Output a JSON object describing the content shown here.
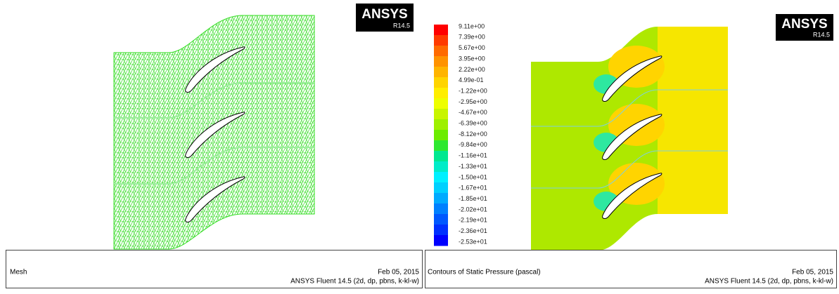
{
  "panels": [
    {
      "logo": {
        "brand": "ANSYS",
        "version": "R14.5"
      },
      "footer": {
        "title": "Mesh",
        "date": "Feb 05, 2015",
        "software": "ANSYS Fluent 14.5 (2d, dp, pbns, k-kl-w)"
      }
    },
    {
      "logo": {
        "brand": "ANSYS",
        "version": "R14.5"
      },
      "colorbar": {
        "labels": [
          "9.11e+00",
          "7.39e+00",
          "5.67e+00",
          "3.95e+00",
          "2.22e+00",
          "4.99e-01",
          "-1.22e+00",
          "-2.95e+00",
          "-4.67e+00",
          "-6.39e+00",
          "-8.12e+00",
          "-9.84e+00",
          "-1.16e+01",
          "-1.33e+01",
          "-1.50e+01",
          "-1.67e+01",
          "-1.85e+01",
          "-2.02e+01",
          "-2.19e+01",
          "-2.36e+01",
          "-2.53e+01"
        ],
        "colors": [
          "#ff0000",
          "#ff3a00",
          "#ff6a00",
          "#ff9200",
          "#ffb400",
          "#ffd400",
          "#ffee00",
          "#eeff00",
          "#c8f500",
          "#9ef000",
          "#6cec00",
          "#2ee830",
          "#00e890",
          "#00ecc8",
          "#00f0ff",
          "#00d0ff",
          "#00aaff",
          "#0080ff",
          "#0058ff",
          "#0030ff",
          "#0000ff"
        ]
      },
      "footer": {
        "title": "Contours of Static Pressure (pascal)",
        "date": "Feb 05, 2015",
        "software": "ANSYS Fluent 14.5 (2d, dp, pbns, k-kl-w)"
      }
    }
  ]
}
